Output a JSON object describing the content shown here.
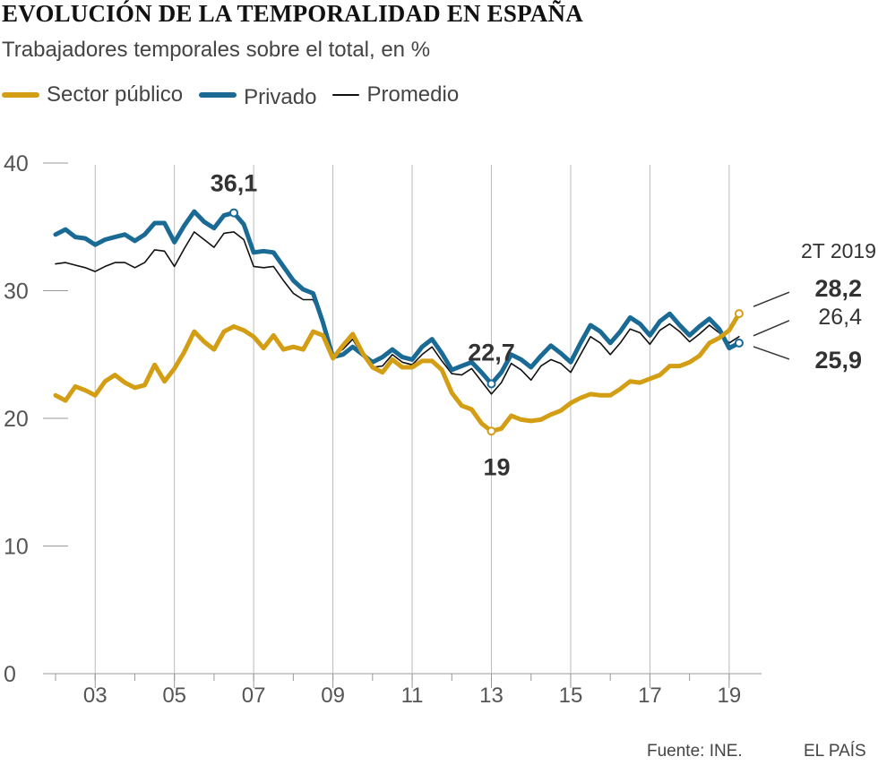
{
  "header": {
    "title": "EVOLUCIÓN DE LA TEMPORALIDAD EN ESPAÑA",
    "subtitle": "Trabajadores temporales sobre el total, en %"
  },
  "legend": [
    {
      "label": "Sector público",
      "color": "#D39D14",
      "style": "thick"
    },
    {
      "label": "Privado",
      "color": "#1A6A96",
      "style": "thick"
    },
    {
      "label": "Promedio",
      "color": "#111111",
      "style": "thin"
    }
  ],
  "footer": {
    "source": "Fuente: INE.",
    "brand": "EL PAÍS"
  },
  "chart_data": {
    "type": "line",
    "title": "EVOLUCIÓN DE LA TEMPORALIDAD EN ESPAÑA",
    "subtitle": "Trabajadores temporales sobre el total, en %",
    "ylim": [
      0,
      40
    ],
    "yticks": [
      0,
      10,
      20,
      30,
      40
    ],
    "xlim": [
      2002.0,
      2019.5
    ],
    "xtick_years": [
      2003,
      2005,
      2007,
      2009,
      2011,
      2013,
      2015,
      2017,
      2019
    ],
    "xtick_labels": [
      "03",
      "05",
      "07",
      "09",
      "11",
      "13",
      "15",
      "17",
      "19"
    ],
    "grid": "vertical",
    "legend_position": "top-left",
    "series": [
      {
        "name": "Sector público",
        "color": "#D39D14",
        "x_start": 2002.0,
        "step": 0.25,
        "values": [
          21.8,
          21.4,
          22.5,
          22.2,
          21.8,
          22.9,
          23.4,
          22.8,
          22.4,
          22.6,
          24.2,
          22.9,
          23.9,
          25.2,
          26.8,
          26.0,
          25.4,
          26.8,
          27.2,
          26.9,
          26.4,
          25.5,
          26.5,
          25.4,
          25.6,
          25.4,
          26.8,
          26.5,
          24.7,
          25.7,
          26.6,
          25.1,
          24.0,
          23.6,
          24.6,
          24.0,
          24.0,
          24.5,
          24.5,
          23.8,
          22.0,
          21.0,
          20.7,
          19.6,
          19.0,
          19.2,
          20.2,
          19.9,
          19.8,
          19.9,
          20.3,
          20.6,
          21.2,
          21.6,
          21.9,
          21.8,
          21.8,
          22.3,
          22.9,
          22.8,
          23.1,
          23.4,
          24.1,
          24.1,
          24.4,
          24.9,
          25.9,
          26.3,
          26.9,
          28.2
        ]
      },
      {
        "name": "Privado",
        "color": "#1A6A96",
        "x_start": 2002.0,
        "step": 0.25,
        "values": [
          34.4,
          34.8,
          34.2,
          34.1,
          33.6,
          34.0,
          34.2,
          34.4,
          33.9,
          34.4,
          35.3,
          35.3,
          33.8,
          35.1,
          36.2,
          35.4,
          34.9,
          35.9,
          36.1,
          35.2,
          33.0,
          33.1,
          33.0,
          31.9,
          30.8,
          30.1,
          29.8,
          27.5,
          24.8,
          25.0,
          25.6,
          25.0,
          24.4,
          24.8,
          25.4,
          24.8,
          24.6,
          25.6,
          26.2,
          25.1,
          23.8,
          24.1,
          24.4,
          23.6,
          22.7,
          23.6,
          25.0,
          24.6,
          24.0,
          24.9,
          25.7,
          25.1,
          24.4,
          25.9,
          27.3,
          26.8,
          25.9,
          26.8,
          27.9,
          27.4,
          26.5,
          27.6,
          28.2,
          27.3,
          26.5,
          27.2,
          27.8,
          27.0,
          25.5,
          25.9
        ]
      },
      {
        "name": "Promedio",
        "color": "#111111",
        "x_start": 2002.0,
        "step": 0.25,
        "values": [
          32.1,
          32.2,
          32.0,
          31.8,
          31.5,
          31.9,
          32.2,
          32.2,
          31.8,
          32.2,
          33.2,
          33.1,
          31.9,
          33.3,
          34.6,
          34.0,
          33.4,
          34.5,
          34.6,
          34.0,
          31.9,
          31.8,
          31.9,
          30.8,
          29.8,
          29.3,
          29.3,
          27.6,
          25.0,
          25.4,
          26.2,
          24.9,
          24.0,
          24.1,
          25.0,
          24.4,
          24.2,
          25.0,
          25.6,
          24.5,
          23.5,
          23.4,
          23.9,
          22.9,
          21.9,
          22.8,
          24.3,
          23.8,
          23.0,
          24.1,
          24.6,
          24.3,
          23.6,
          25.0,
          26.4,
          25.9,
          25.0,
          25.9,
          27.0,
          26.7,
          25.8,
          26.9,
          27.4,
          26.8,
          26.0,
          26.6,
          27.3,
          26.7,
          25.9,
          26.4
        ]
      }
    ],
    "annotations": [
      {
        "text": "36,1",
        "series": 1,
        "index": 18,
        "bold": true
      },
      {
        "text": "22,7",
        "series": 1,
        "index": 44,
        "bold": true
      },
      {
        "text": "19",
        "series": 0,
        "index": 44,
        "bold": true
      },
      {
        "text": "2T 2019",
        "role": "period"
      },
      {
        "text": "28,2",
        "series": 0,
        "index": 69,
        "bold": true
      },
      {
        "text": "26,4",
        "series": 2,
        "index": 69,
        "bold": false
      },
      {
        "text": "25,9",
        "series": 1,
        "index": 69,
        "bold": true
      }
    ]
  }
}
